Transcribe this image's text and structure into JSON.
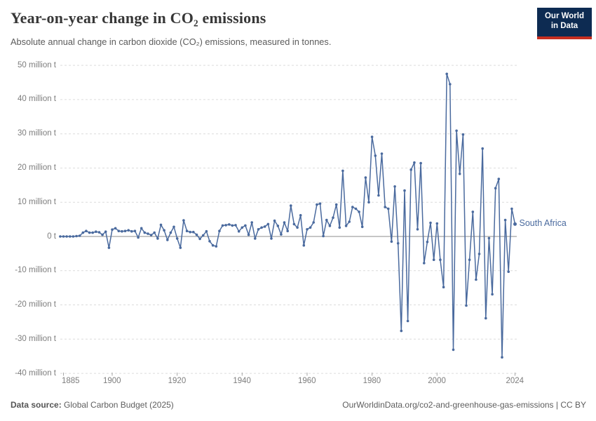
{
  "header": {
    "title": "Year-on-year change in CO₂ emissions",
    "subtitle": "Absolute annual change in carbon dioxide (CO₂) emissions, measured in tonnes."
  },
  "logo": {
    "line1": "Our World",
    "line2": "in Data",
    "bg_color": "#0d2b52",
    "accent_color": "#c62f21"
  },
  "chart_data": {
    "type": "line",
    "title": "Year-on-year change in CO₂ emissions",
    "unit": "million t",
    "entity_label": "South Africa",
    "line_color": "#4a6a9e",
    "grid": "horizontal-dashed",
    "legend_position": "right-end-of-line",
    "xlim": [
      1884,
      2025
    ],
    "ylim": [
      -40,
      50
    ],
    "year_start": 1884,
    "year_end": 2024,
    "x_ticks": [
      {
        "year": 1885,
        "label": "1885"
      },
      {
        "year": 1900,
        "label": "1900"
      },
      {
        "year": 1920,
        "label": "1920"
      },
      {
        "year": 1940,
        "label": "1940"
      },
      {
        "year": 1960,
        "label": "1960"
      },
      {
        "year": 1980,
        "label": "1980"
      },
      {
        "year": 2000,
        "label": "2000"
      },
      {
        "year": 2024,
        "label": "2024"
      }
    ],
    "y_ticks": [
      {
        "value": 50,
        "label": "50 million t"
      },
      {
        "value": 40,
        "label": "40 million t"
      },
      {
        "value": 30,
        "label": "30 million t"
      },
      {
        "value": 20,
        "label": "20 million t"
      },
      {
        "value": 10,
        "label": "10 million t"
      },
      {
        "value": 0,
        "label": "0 t"
      },
      {
        "value": -10,
        "label": "-10 million t"
      },
      {
        "value": -20,
        "label": "-20 million t"
      },
      {
        "value": -30,
        "label": "-30 million t"
      },
      {
        "value": -40,
        "label": "-40 million t"
      }
    ],
    "series": [
      {
        "name": "South Africa",
        "values": [
          0.0,
          0.0,
          0.0,
          0.0,
          0.0,
          0.1,
          0.2,
          1.1,
          1.6,
          1.1,
          1.1,
          1.4,
          1.2,
          0.5,
          1.4,
          -3.3,
          2.0,
          2.4,
          1.6,
          1.5,
          1.6,
          1.8,
          1.5,
          1.6,
          -0.3,
          2.4,
          1.1,
          0.8,
          0.4,
          1.1,
          -0.6,
          3.4,
          1.8,
          -1.0,
          1.1,
          2.8,
          -0.6,
          -3.3,
          4.7,
          1.6,
          1.3,
          1.3,
          0.5,
          -0.7,
          0.3,
          1.5,
          -1.4,
          -2.6,
          -2.9,
          1.6,
          3.2,
          3.3,
          3.5,
          3.2,
          3.3,
          1.5,
          2.6,
          3.2,
          0.5,
          4.1,
          -0.6,
          2.1,
          2.6,
          2.9,
          3.6,
          -0.6,
          4.6,
          3.1,
          0.6,
          4.1,
          1.6,
          9.0,
          3.6,
          2.6,
          6.2,
          -2.6,
          2.1,
          2.6,
          4.1,
          9.3,
          9.6,
          0.1,
          4.8,
          3.1,
          5.5,
          9.3,
          2.6,
          19.2,
          3.1,
          4.3,
          8.6,
          8.1,
          7.2,
          2.8,
          17.2,
          10.0,
          29.1,
          23.6,
          12.0,
          24.2,
          8.6,
          8.1,
          -1.5,
          14.6,
          -2.0,
          -27.6,
          13.4,
          -24.7,
          19.5,
          21.6,
          2.1,
          21.4,
          -7.8,
          -1.6,
          4.0,
          -6.8,
          3.8,
          -6.8,
          -14.8,
          47.5,
          44.5,
          -33.1,
          30.9,
          18.3,
          29.8,
          -20.2,
          -6.8,
          7.2,
          -12.6,
          -5.1,
          25.7,
          -23.9,
          -0.5,
          -16.9,
          14.1,
          16.8,
          -35.3,
          4.8,
          -10.3,
          8.1,
          3.6
        ]
      }
    ]
  },
  "footer": {
    "source_prefix": "Data source:",
    "source_text": " Global Carbon Budget (2025)",
    "link_text": "OurWorldinData.org/co2-and-greenhouse-gas-emissions | CC BY"
  }
}
